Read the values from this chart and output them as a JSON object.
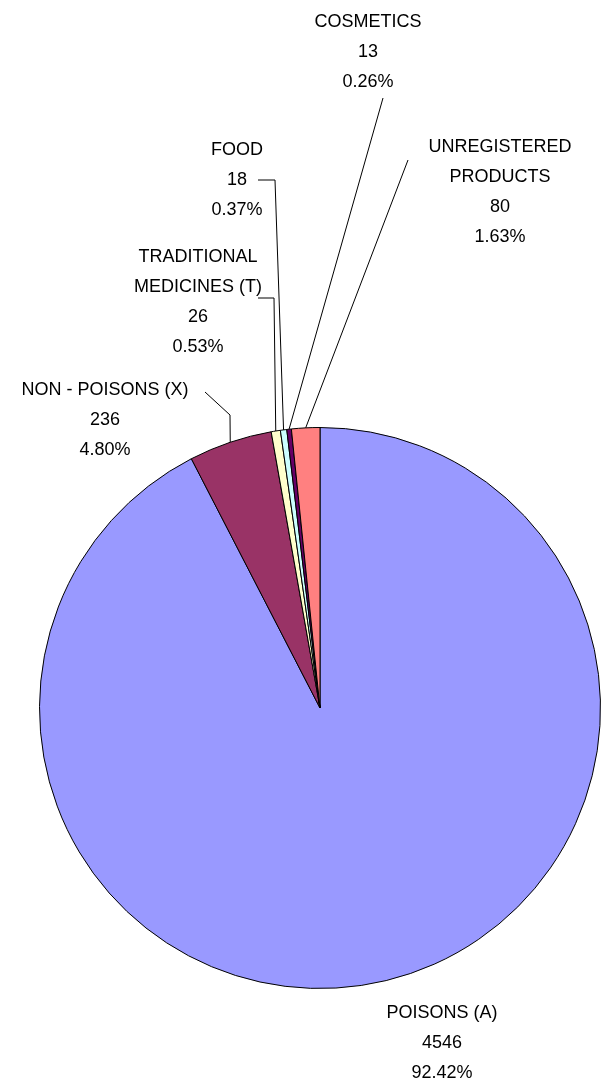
{
  "chart_data": {
    "type": "pie",
    "categories": [
      "POISONS (A)",
      "NON - POISONS (X)",
      "TRADITIONAL MEDICINES (T)",
      "FOOD",
      "COSMETICS",
      "UNREGISTERED PRODUCTS"
    ],
    "values": [
      4546,
      236,
      26,
      18,
      13,
      80
    ],
    "colors": [
      "#9999ff",
      "#993366",
      "#ffffcc",
      "#ccffff",
      "#660066",
      "#ff8080"
    ],
    "value_labels": [
      "4546\n92.42%",
      "236\n4.80%",
      "26\n0.53%",
      "18\n0.37%",
      "13\n0.26%",
      "80\n1.63%"
    ],
    "legend": false
  }
}
